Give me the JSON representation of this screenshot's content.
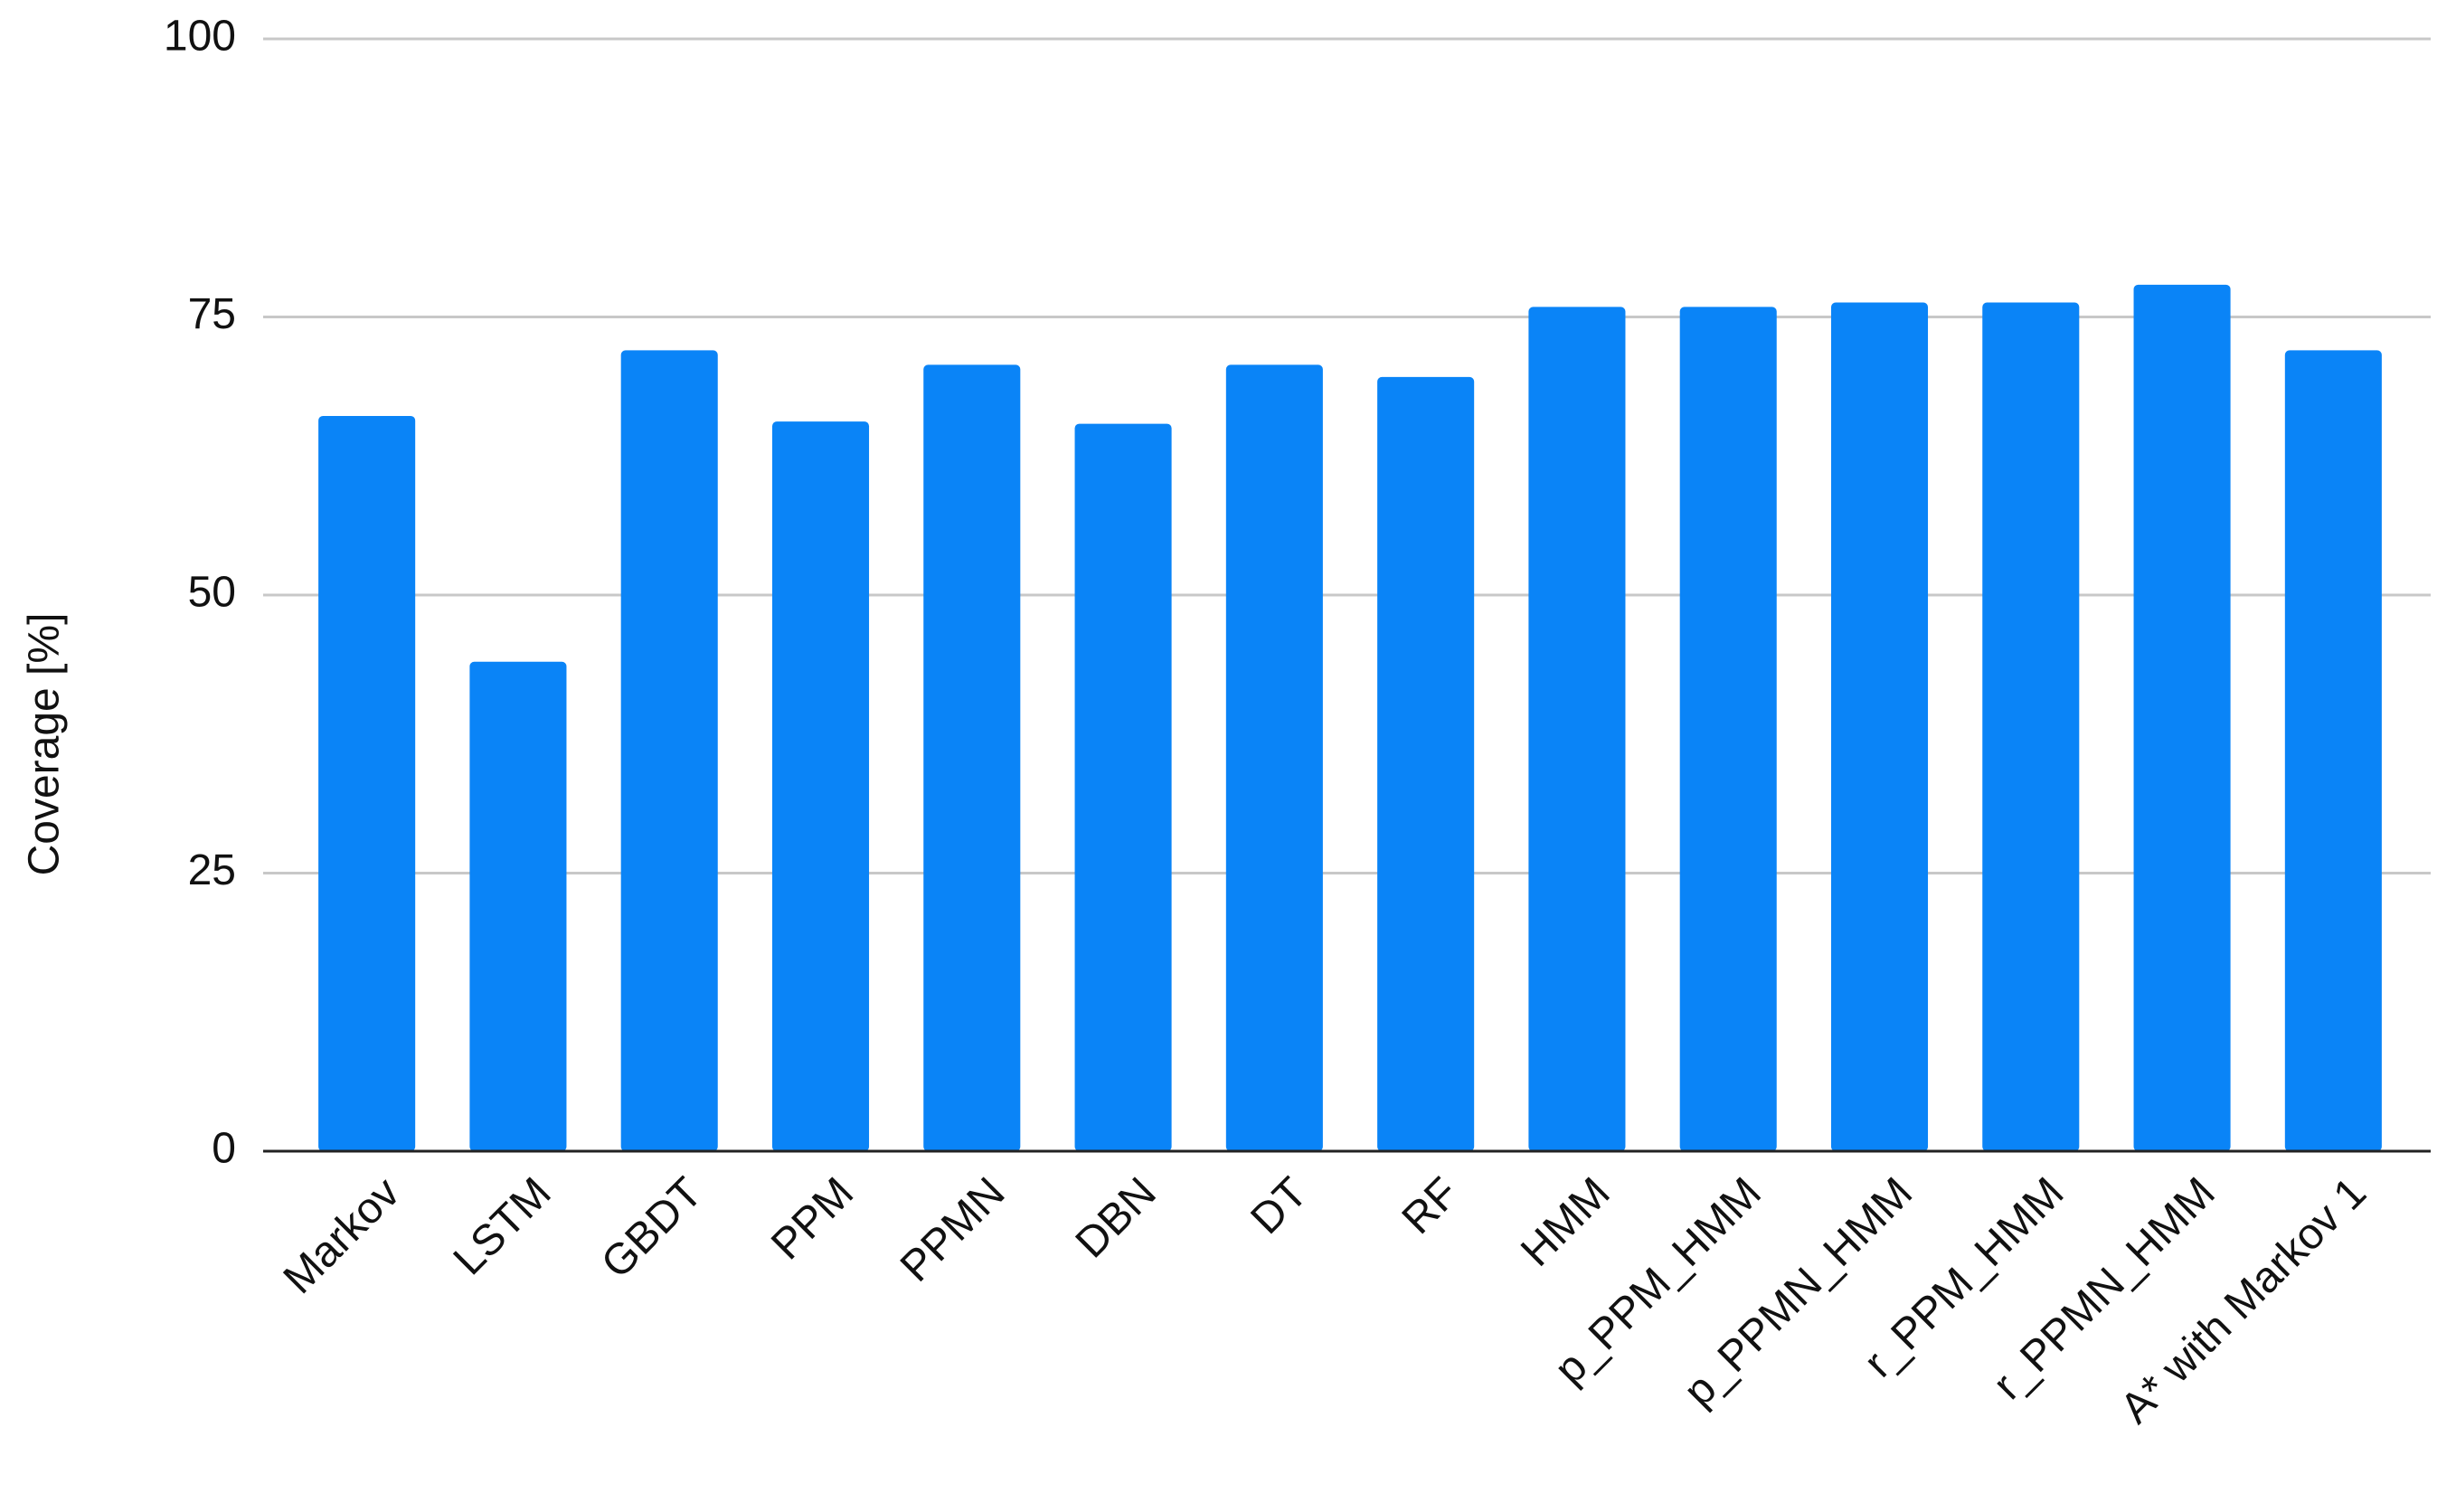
{
  "chart_data": {
    "type": "bar",
    "y_label": "Coverage [%]",
    "categories": [
      "Markov",
      "LSTM",
      "GBDT",
      "PPM",
      "PPMN",
      "DBN",
      "DT",
      "RF",
      "HMM",
      "p_PPM_HMM",
      "p_PPMN_HMM",
      "r_PPM_HMM",
      "r_PPMN_HMM",
      "A* with Markov 1"
    ],
    "values": [
      66.1,
      44,
      72,
      65.6,
      70.7,
      65.4,
      70.7,
      69.6,
      75.9,
      75.9,
      76.3,
      76.3,
      77.9,
      72
    ],
    "color": "#0a84f7",
    "ylim": [
      0,
      100
    ],
    "yticks": [
      0,
      25,
      50,
      75,
      100
    ],
    "grid": true
  }
}
